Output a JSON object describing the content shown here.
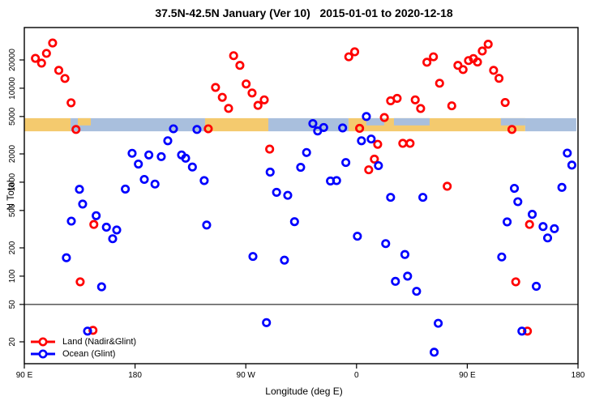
{
  "title": "37.5N-42.5N January (Ver 10)   2015-01-01 to 2020-12-18",
  "colors": {
    "land_point": "#ff0000",
    "ocean_point": "#0000ff",
    "band_land": "#f4ca6e",
    "band_ocean": "#a9bfdd",
    "axis": "#000000"
  },
  "chart_data": {
    "type": "scatter",
    "title": "37.5N-42.5N January (Ver 10)   2015-01-01 to 2020-12-18",
    "xlabel": "Longitude (deg E)",
    "ylabel": "N Total",
    "y_scale": "log",
    "y_ticks": [
      20000,
      10000,
      5000,
      2000,
      1000,
      500,
      200,
      100,
      50,
      20
    ],
    "x_ticks": [
      {
        "label": "90 E",
        "deg": 0
      },
      {
        "label": "180",
        "deg": 90
      },
      {
        "label": "90 W",
        "deg": 180
      },
      {
        "label": "0",
        "deg": 270
      },
      {
        "label": "90 E",
        "deg": 360
      },
      {
        "label": "180",
        "deg": 450
      }
    ],
    "x_axis_deg_span": 450,
    "reference_line_value": 50,
    "legend_position": "bottom-left",
    "geo_band": {
      "value_top": 4800,
      "value_bottom": 3480,
      "segments": [
        {
          "d0": 0,
          "d1": 37.6,
          "surface": "land",
          "level": "full"
        },
        {
          "d0": 37.6,
          "d1": 146.9,
          "surface": "ocean",
          "level": "full"
        },
        {
          "d0": 43.5,
          "d1": 54,
          "surface": "land",
          "level": "top"
        },
        {
          "d0": 146.9,
          "d1": 198.3,
          "surface": "land",
          "level": "full"
        },
        {
          "d0": 198.3,
          "d1": 263.5,
          "surface": "ocean",
          "level": "full"
        },
        {
          "d0": 263.5,
          "d1": 407.1,
          "surface": "land",
          "level": "full"
        },
        {
          "d0": 278,
          "d1": 292.5,
          "surface": "ocean",
          "level": "top"
        },
        {
          "d0": 300.4,
          "d1": 329.4,
          "surface": "ocean",
          "level": "top"
        },
        {
          "d0": 387.3,
          "d1": 407.1,
          "surface": "ocean",
          "level": "top"
        },
        {
          "d0": 407.1,
          "d1": 448.6,
          "surface": "ocean",
          "level": "full"
        }
      ]
    },
    "series": [
      {
        "name": "Land (Nadir&Glint)",
        "color": "#ff0000",
        "points": [
          [
            9,
            20800
          ],
          [
            14,
            18500
          ],
          [
            18,
            23500
          ],
          [
            23,
            30300
          ],
          [
            28,
            15500
          ],
          [
            33,
            12700
          ],
          [
            38,
            7000
          ],
          [
            42,
            3640
          ],
          [
            45.4,
            87
          ],
          [
            55.8,
            26.5
          ],
          [
            56.5,
            355
          ],
          [
            149.5,
            3700
          ],
          [
            155.4,
            10200
          ],
          [
            160.9,
            8000
          ],
          [
            166,
            6100
          ],
          [
            170.1,
            22200
          ],
          [
            175.2,
            17500
          ],
          [
            180.3,
            11100
          ],
          [
            185.1,
            8900
          ],
          [
            189.9,
            6570
          ],
          [
            195,
            7520
          ],
          [
            199.4,
            2250
          ],
          [
            263.7,
            21600
          ],
          [
            268.5,
            24400
          ],
          [
            272.5,
            3740
          ],
          [
            279.9,
            1355
          ],
          [
            284.5,
            1760
          ],
          [
            287.2,
            2530
          ],
          [
            292.6,
            4880
          ],
          [
            297.7,
            7350
          ],
          [
            303,
            7800
          ],
          [
            307.6,
            2590
          ],
          [
            313.5,
            2590
          ],
          [
            317.7,
            7520
          ],
          [
            322.1,
            6080
          ],
          [
            327.2,
            18900
          ],
          [
            332.5,
            21600
          ],
          [
            337.5,
            11300
          ],
          [
            343.7,
            905
          ],
          [
            347.4,
            6500
          ],
          [
            352.4,
            17500
          ],
          [
            356.6,
            15800
          ],
          [
            361,
            19700
          ],
          [
            365,
            20700
          ],
          [
            368.3,
            19000
          ],
          [
            372.2,
            24900
          ],
          [
            377,
            29400
          ],
          [
            381.4,
            15500
          ],
          [
            385.8,
            12750
          ],
          [
            390.8,
            7050
          ],
          [
            396.3,
            3640
          ],
          [
            399.4,
            87
          ],
          [
            408.9,
            26
          ],
          [
            410.6,
            355
          ]
        ]
      },
      {
        "name": "Ocean (Glint)",
        "color": "#0000ff",
        "points": [
          [
            34.2,
            157
          ],
          [
            38.2,
            385
          ],
          [
            44.8,
            840
          ],
          [
            47.4,
            585
          ],
          [
            51.4,
            26
          ],
          [
            58.4,
            440
          ],
          [
            62.8,
            77
          ],
          [
            66.7,
            332
          ],
          [
            71.8,
            250
          ],
          [
            75.1,
            310
          ],
          [
            82.1,
            845
          ],
          [
            87.6,
            2030
          ],
          [
            92.7,
            1560
          ],
          [
            97.5,
            1070
          ],
          [
            101.2,
            1950
          ],
          [
            106.2,
            955
          ],
          [
            111.3,
            1870
          ],
          [
            116.6,
            2760
          ],
          [
            121.2,
            3700
          ],
          [
            127.8,
            1950
          ],
          [
            131.1,
            1800
          ],
          [
            136.6,
            1450
          ],
          [
            140.3,
            3640
          ],
          [
            146.2,
            1040
          ],
          [
            148.2,
            350
          ],
          [
            185.8,
            162
          ],
          [
            196.8,
            32
          ],
          [
            199.8,
            1280
          ],
          [
            205,
            780
          ],
          [
            211.4,
            148
          ],
          [
            214.1,
            725
          ],
          [
            219.6,
            380
          ],
          [
            224.6,
            1440
          ],
          [
            229.4,
            2070
          ],
          [
            234.5,
            4210
          ],
          [
            238.4,
            3510
          ],
          [
            243.3,
            3820
          ],
          [
            248.8,
            1030
          ],
          [
            253.8,
            1040
          ],
          [
            258.7,
            3780
          ],
          [
            261.3,
            1620
          ],
          [
            270.7,
            266
          ],
          [
            274,
            2760
          ],
          [
            278,
            5000
          ],
          [
            281.9,
            2880
          ],
          [
            287.8,
            1500
          ],
          [
            293.7,
            222
          ],
          [
            297.7,
            690
          ],
          [
            301.6,
            88
          ],
          [
            309.3,
            170
          ],
          [
            311.5,
            100
          ],
          [
            318.8,
            69
          ],
          [
            323.9,
            690
          ],
          [
            333.1,
            15.5
          ],
          [
            336.4,
            31.5
          ],
          [
            388,
            160
          ],
          [
            392.4,
            378
          ],
          [
            398.3,
            860
          ],
          [
            401.1,
            620
          ],
          [
            404.4,
            26
          ],
          [
            412.8,
            455
          ],
          [
            416.1,
            78
          ],
          [
            421.6,
            337
          ],
          [
            425.3,
            255
          ],
          [
            430.8,
            320
          ],
          [
            436.9,
            880
          ],
          [
            441.3,
            2040
          ],
          [
            445,
            1520
          ]
        ]
      }
    ]
  }
}
